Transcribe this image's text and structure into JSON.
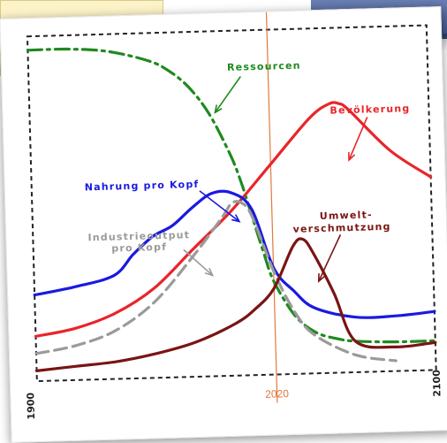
{
  "chart_data": {
    "type": "line",
    "title": "",
    "xlabel": "",
    "ylabel": "",
    "xlim": [
      1900,
      2100
    ],
    "ylim": [
      0,
      100
    ],
    "grid": false,
    "ticks": {
      "x_start": "1900",
      "x_end": "2100"
    },
    "marker": {
      "x": 2020,
      "label": "2020",
      "color": "#e07a3c"
    },
    "series": [
      {
        "name": "Ressourcen",
        "color": "#1f8a1f",
        "style": "dashdot",
        "label_lines": [
          "Ressourcen"
        ],
        "x": [
          1900,
          1920,
          1940,
          1960,
          1970,
          1980,
          1990,
          2000,
          2005,
          2010,
          2015,
          2020,
          2030,
          2040,
          2050,
          2060,
          2080,
          2100
        ],
        "y": [
          96,
          96,
          95,
          92,
          89,
          84,
          76,
          64,
          56,
          46,
          36,
          27,
          17,
          12,
          10,
          9,
          8.5,
          8.5
        ]
      },
      {
        "name": "Bevölkerung",
        "color": "#e8252b",
        "style": "solid",
        "label_lines": [
          "Bevölkerung"
        ],
        "x": [
          1900,
          1920,
          1940,
          1960,
          1980,
          2000,
          2020,
          2040,
          2050,
          2055,
          2060,
          2080,
          2100
        ],
        "y": [
          13,
          15,
          19,
          26,
          37,
          48,
          61,
          74,
          78,
          78,
          76,
          64,
          56
        ]
      },
      {
        "name": "Nahrung pro Kopf",
        "color": "#1a1ae0",
        "style": "solid",
        "label_lines": [
          "Nahrung pro Kopf"
        ],
        "x": [
          1900,
          1920,
          1940,
          1950,
          1960,
          1970,
          1980,
          1990,
          2000,
          2010,
          2020,
          2030,
          2040,
          2060,
          2080,
          2100
        ],
        "y": [
          25,
          27,
          30,
          36,
          41,
          44,
          49,
          53,
          53,
          48,
          31,
          24,
          19,
          16,
          16,
          17
        ]
      },
      {
        "name": "Industrieoutput pro Kopf",
        "color": "#9a9a9a",
        "style": "dashed",
        "label_lines": [
          "Industrieoutput",
          "pro Kopf"
        ],
        "x": [
          1900,
          1920,
          1940,
          1960,
          1980,
          1995,
          2000,
          2005,
          2010,
          2020,
          2030,
          2040,
          2060,
          2080
        ],
        "y": [
          8,
          10,
          14,
          22,
          35,
          46,
          50,
          50,
          46,
          30,
          18,
          11,
          5,
          3
        ]
      },
      {
        "name": "Umweltverschmutzung",
        "color": "#7a1414",
        "style": "solid",
        "label_lines": [
          "Umwelt-",
          "verschmutzung"
        ],
        "x": [
          1900,
          1920,
          1940,
          1960,
          1980,
          2000,
          2010,
          2020,
          2030,
          2035,
          2040,
          2050,
          2060,
          2080,
          2100
        ],
        "y": [
          3,
          4,
          5,
          7,
          10,
          15,
          19,
          25,
          37,
          39,
          35,
          23,
          9,
          7,
          8
        ]
      }
    ]
  }
}
